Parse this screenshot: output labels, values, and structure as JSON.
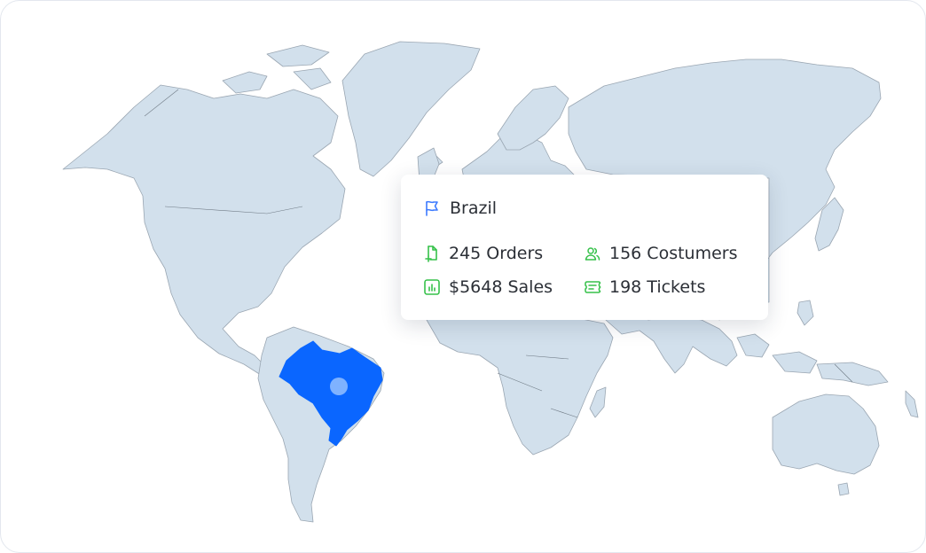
{
  "colors": {
    "land": "#d2e0ec",
    "highlight": "#0a66ff",
    "marker": "#7fb2ff",
    "flag_icon": "#3d7bff",
    "stat_icon": "#36c14a"
  },
  "map": {
    "selected_country": "Brazil"
  },
  "tooltip": {
    "flag_icon": "flag-icon",
    "country": "Brazil",
    "stats": [
      {
        "icon": "document-icon",
        "label": "245 Orders"
      },
      {
        "icon": "users-icon",
        "label": "156 Costumers"
      },
      {
        "icon": "chart-icon",
        "label": "$5648 Sales"
      },
      {
        "icon": "ticket-icon",
        "label": "198 Tickets"
      }
    ]
  }
}
